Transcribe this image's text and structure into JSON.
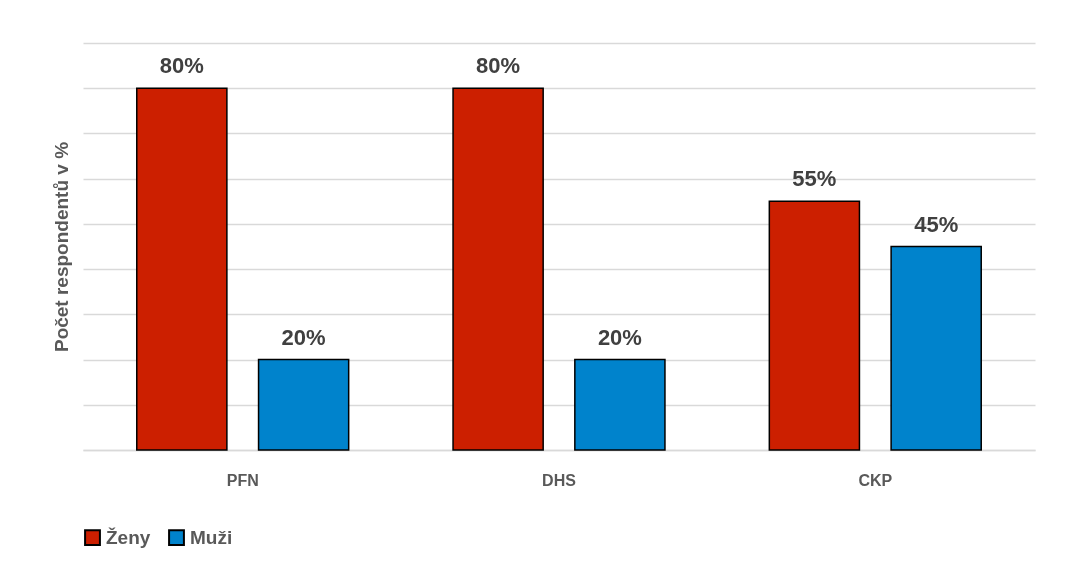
{
  "chart_data": {
    "type": "bar",
    "ylabel": "Počet respondentů v %",
    "categories": [
      "PFN",
      "DHS",
      "CKP"
    ],
    "series": [
      {
        "name": "Ženy",
        "color": "#cc1f00",
        "values": [
          80,
          80,
          55
        ],
        "value_labels": [
          "80%",
          "80%",
          "55%"
        ]
      },
      {
        "name": "Muži",
        "color": "#0083cc",
        "values": [
          20,
          20,
          45
        ],
        "value_labels": [
          "20%",
          "20%",
          "45%"
        ]
      }
    ],
    "ylim": [
      0,
      90
    ],
    "yticks": [
      {
        "value": 0,
        "label": null
      },
      {
        "value": 10,
        "label": null
      },
      {
        "value": 20,
        "label": null
      },
      {
        "value": 30,
        "label": null
      },
      {
        "value": 40,
        "label": null
      },
      {
        "value": 50,
        "label": null
      },
      {
        "value": 60,
        "label": null
      },
      {
        "value": 70,
        "label": null
      },
      {
        "value": 80,
        "label": null
      },
      {
        "value": 90,
        "label": null
      }
    ],
    "grid": "y",
    "tick_labels": "x",
    "legend": "bottom"
  }
}
